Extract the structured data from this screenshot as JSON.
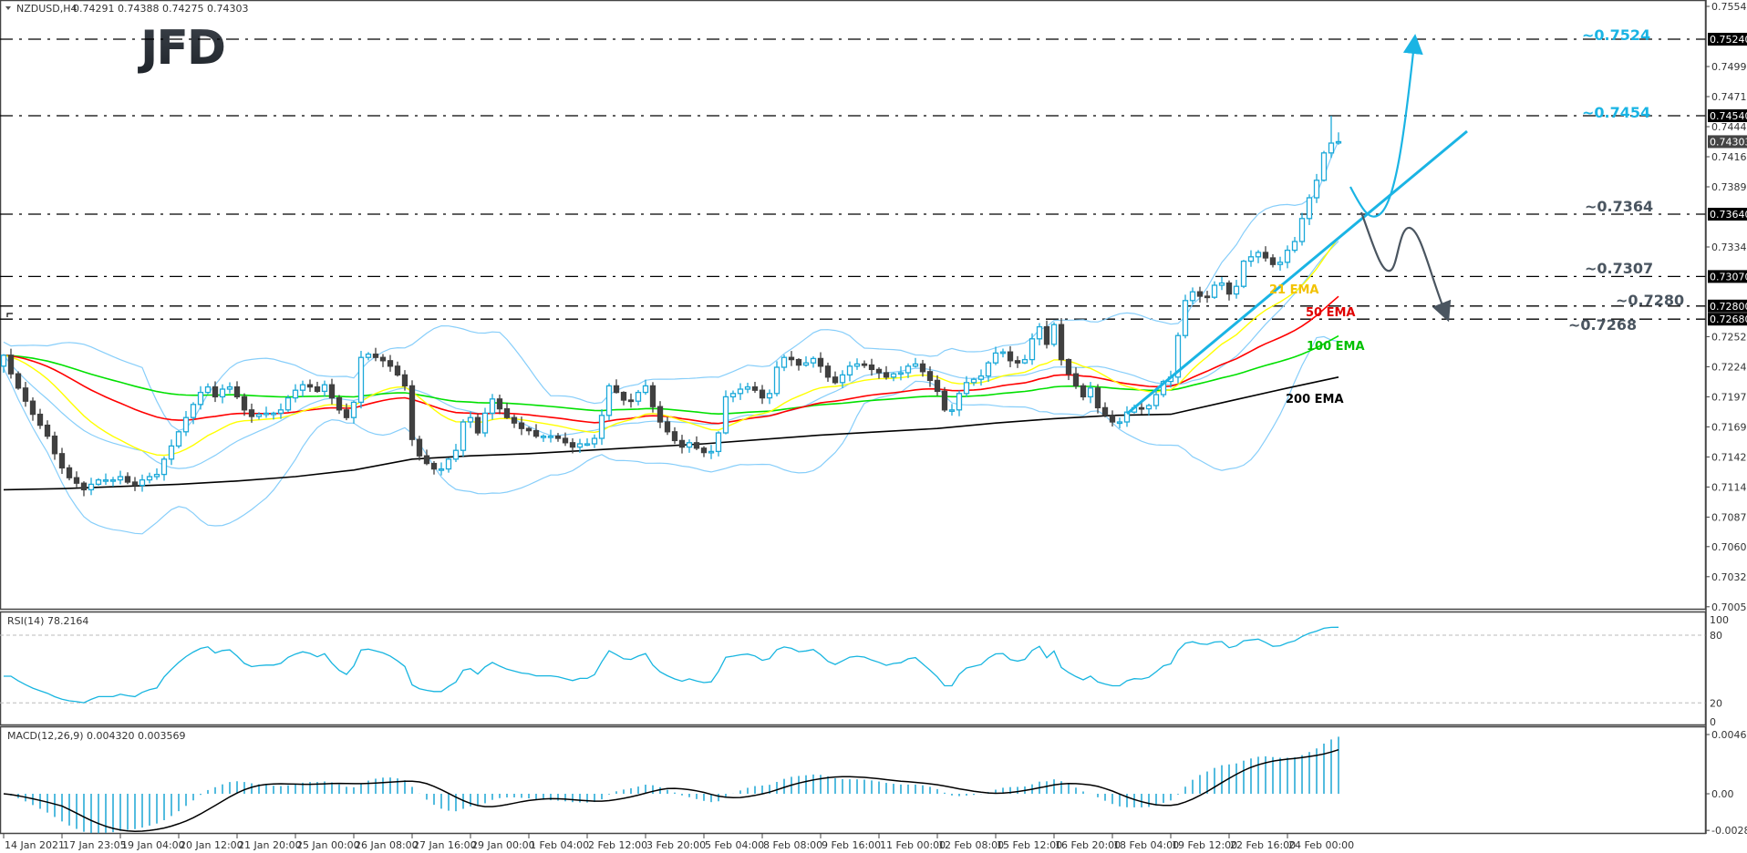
{
  "header": {
    "symbol": "NZDUSD,H4",
    "ohlc_text": "0.74291 0.74388 0.74275 0.74303",
    "last_bar": {
      "open": 0.74291,
      "high": 0.74388,
      "low": 0.74275,
      "close": 0.74303
    }
  },
  "logo": {
    "text": "JFD"
  },
  "colors": {
    "bull": "#1ba9d9",
    "bear": "#404040",
    "bollinger": "#87cefa",
    "ema21": "#ffff00",
    "ema50": "#ff0000",
    "ema100": "#00e000",
    "ema200": "#000000",
    "annotation_up": "#1ab4e4",
    "annotation_down": "#4a5560",
    "rsi": "#17b5e0",
    "macd_hist": "#1aa6d4",
    "macd_signal": "#000000"
  },
  "chart_data": [
    {
      "type": "candlestick",
      "title": "NZDUSD,H4",
      "ylim": [
        0.7005,
        0.7554
      ],
      "y_ticks": [
        "0.75540",
        "0.74990",
        "0.74715",
        "0.74440",
        "0.74165",
        "0.73890",
        "0.73340",
        "0.72520",
        "0.72245",
        "0.71970",
        "0.71695",
        "0.71420",
        "0.71145",
        "0.70870",
        "0.70600",
        "0.70325",
        "0.70050"
      ],
      "x_ticks": [
        "14 Jan 2021",
        "17 Jan 23:05",
        "19 Jan 04:00",
        "20 Jan 12:00",
        "21 Jan 20:00",
        "25 Jan 00:00",
        "26 Jan 08:00",
        "27 Jan 16:00",
        "29 Jan 00:00",
        "1 Feb 04:00",
        "2 Feb 12:00",
        "3 Feb 20:00",
        "5 Feb 04:00",
        "8 Feb 08:00",
        "9 Feb 16:00",
        "11 Feb 00:00",
        "12 Feb 08:00",
        "15 Feb 12:00",
        "16 Feb 20:00",
        "18 Feb 04:00",
        "19 Feb 12:00",
        "22 Feb 16:00",
        "24 Feb 00:00"
      ],
      "first_open": 0.7225,
      "close": [
        0.7235,
        0.7218,
        0.7205,
        0.7193,
        0.7181,
        0.7171,
        0.7161,
        0.7145,
        0.7132,
        0.7123,
        0.7118,
        0.7112,
        0.7117,
        0.7121,
        0.7121,
        0.7121,
        0.7124,
        0.7119,
        0.7116,
        0.7121,
        0.7124,
        0.7126,
        0.714,
        0.7152,
        0.7165,
        0.7178,
        0.719,
        0.7201,
        0.7206,
        0.7197,
        0.7204,
        0.7206,
        0.7197,
        0.7185,
        0.7179,
        0.7181,
        0.7182,
        0.7182,
        0.7185,
        0.7196,
        0.7203,
        0.7208,
        0.7206,
        0.7202,
        0.7208,
        0.7196,
        0.7185,
        0.7178,
        0.7192,
        0.7233,
        0.7236,
        0.7233,
        0.723,
        0.7225,
        0.7217,
        0.7207,
        0.7158,
        0.7143,
        0.7136,
        0.7131,
        0.7131,
        0.714,
        0.7148,
        0.7174,
        0.7178,
        0.7164,
        0.7182,
        0.7195,
        0.7186,
        0.7178,
        0.7173,
        0.7168,
        0.7166,
        0.7161,
        0.7161,
        0.7161,
        0.7159,
        0.7155,
        0.7151,
        0.7154,
        0.7154,
        0.7159,
        0.718,
        0.7207,
        0.7201,
        0.7194,
        0.7193,
        0.7201,
        0.7207,
        0.7188,
        0.7174,
        0.7165,
        0.7157,
        0.7151,
        0.7155,
        0.715,
        0.7146,
        0.7147,
        0.7164,
        0.7197,
        0.72,
        0.7204,
        0.7206,
        0.7203,
        0.7196,
        0.72,
        0.7224,
        0.7233,
        0.7231,
        0.7226,
        0.7228,
        0.7232,
        0.7225,
        0.7215,
        0.721,
        0.7217,
        0.7225,
        0.7227,
        0.7226,
        0.7222,
        0.7219,
        0.7215,
        0.7218,
        0.7219,
        0.7225,
        0.7227,
        0.722,
        0.7212,
        0.7202,
        0.7185,
        0.7185,
        0.72,
        0.721,
        0.7213,
        0.7216,
        0.7228,
        0.7237,
        0.7238,
        0.723,
        0.7228,
        0.7231,
        0.725,
        0.7261,
        0.7245,
        0.7263,
        0.7231,
        0.7218,
        0.7207,
        0.7197,
        0.7205,
        0.7187,
        0.718,
        0.7174,
        0.7174,
        0.7183,
        0.7187,
        0.7186,
        0.7189,
        0.7199,
        0.7211,
        0.7215,
        0.7253,
        0.7285,
        0.7293,
        0.7289,
        0.7288,
        0.7299,
        0.7301,
        0.7291,
        0.7298,
        0.7321,
        0.7325,
        0.7329,
        0.7324,
        0.7318,
        0.732,
        0.7331,
        0.7339,
        0.736,
        0.7379,
        0.7395,
        0.742,
        0.7429,
        0.74303
      ],
      "ema200_at_x_ticks": [
        0.7112,
        0.7113,
        0.7115,
        0.7117,
        0.712,
        0.7124,
        0.713,
        0.714,
        0.7143,
        0.7145,
        0.7148,
        0.7151,
        0.7154,
        0.7158,
        0.7162,
        0.7165,
        0.7168,
        0.7173,
        0.7177,
        0.718,
        0.7181,
        0.7193,
        0.7205
      ],
      "ema200_last": 0.7215,
      "indicators": [
        "Bollinger Bands (20,2)",
        "EMA 21",
        "EMA 50",
        "EMA 100",
        "EMA 200"
      ],
      "ema_labels": {
        "ema21": "21 EMA",
        "ema50": "50 EMA",
        "ema100": "100 EMA",
        "ema200": "200 EMA"
      },
      "levels": [
        {
          "value": 0.7524,
          "label": "~0.7524",
          "axis_label": "0.75240",
          "color": "#1ab4e4"
        },
        {
          "value": 0.7454,
          "label": "~0.7454",
          "axis_label": "0.74540",
          "color": "#1ab4e4"
        },
        {
          "value": 0.7364,
          "label": "~0.7364",
          "axis_label": "0.73640",
          "color": "#4a5560"
        },
        {
          "value": 0.7307,
          "label": "~0.7307",
          "axis_label": "0.73070",
          "color": "#4a5560"
        },
        {
          "value": 0.728,
          "label": "~0.7280",
          "axis_label": "0.72800",
          "color": "#4a5560"
        },
        {
          "value": 0.7268,
          "label": "~0.7268",
          "axis_label": "0.72680",
          "color": "#4a5560"
        }
      ],
      "current_price_label": "0.74303"
    },
    {
      "type": "line",
      "title": "RSI(14) 78.2164",
      "ylim": [
        0,
        100
      ],
      "y_ticks": [
        "100",
        "80",
        "20",
        "0"
      ],
      "levels": [
        80,
        20
      ]
    },
    {
      "type": "bar",
      "title": "MACD(12,26,9) 0.004320 0.003569",
      "ylim": [
        -0.002882,
        0.004663
      ],
      "y_ticks": [
        "0.004663",
        "0.00",
        "-0.002882"
      ]
    }
  ]
}
